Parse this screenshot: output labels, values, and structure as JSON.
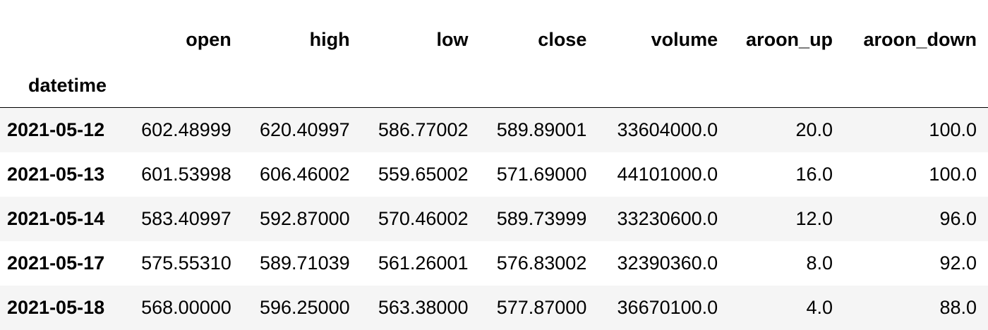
{
  "table": {
    "columns": [
      "open",
      "high",
      "low",
      "close",
      "volume",
      "aroon_up",
      "aroon_down"
    ],
    "index_name": "datetime",
    "rows": [
      {
        "index": "2021-05-12",
        "values": [
          "602.48999",
          "620.40997",
          "586.77002",
          "589.89001",
          "33604000.0",
          "20.0",
          "100.0"
        ]
      },
      {
        "index": "2021-05-13",
        "values": [
          "601.53998",
          "606.46002",
          "559.65002",
          "571.69000",
          "44101000.0",
          "16.0",
          "100.0"
        ]
      },
      {
        "index": "2021-05-14",
        "values": [
          "583.40997",
          "592.87000",
          "570.46002",
          "589.73999",
          "33230600.0",
          "12.0",
          "96.0"
        ]
      },
      {
        "index": "2021-05-17",
        "values": [
          "575.55310",
          "589.71039",
          "561.26001",
          "576.83002",
          "32390360.0",
          "8.0",
          "92.0"
        ]
      },
      {
        "index": "2021-05-18",
        "values": [
          "568.00000",
          "596.25000",
          "563.38000",
          "577.87000",
          "36670100.0",
          "4.0",
          "88.0"
        ]
      }
    ]
  }
}
